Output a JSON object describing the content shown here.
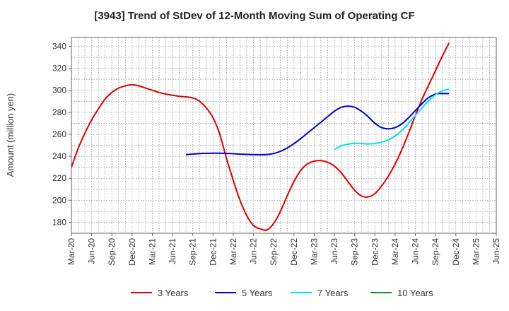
{
  "chart_data": {
    "type": "line",
    "title": "[3943]  Trend of StDev of 12-Month Moving Sum of Operating CF",
    "xlabel": "",
    "ylabel": "Amount (million yen)",
    "ylim": [
      170,
      348
    ],
    "yticks": [
      180,
      200,
      220,
      240,
      260,
      280,
      300,
      320,
      340
    ],
    "xticks": [
      "Mar-20",
      "Jun-20",
      "Sep-20",
      "Dec-20",
      "Mar-21",
      "Jun-21",
      "Sep-21",
      "Dec-21",
      "Mar-22",
      "Jun-22",
      "Sep-22",
      "Dec-22",
      "Mar-23",
      "Jun-23",
      "Sep-23",
      "Dec-23",
      "Mar-24",
      "Jun-24",
      "Sep-24",
      "Dec-24",
      "Mar-25",
      "Jun-25"
    ],
    "grid": true,
    "legend_position": "bottom",
    "series": [
      {
        "name": "3 Years",
        "color": "#dd0000",
        "points": [
          [
            "Mar-20",
            230
          ],
          [
            "Apr-20",
            247
          ],
          [
            "May-20",
            261
          ],
          [
            "Jun-20",
            273
          ],
          [
            "Jul-20",
            283
          ],
          [
            "Aug-20",
            292
          ],
          [
            "Sep-20",
            298
          ],
          [
            "Oct-20",
            302
          ],
          [
            "Nov-20",
            304
          ],
          [
            "Dec-20",
            305
          ],
          [
            "Jan-21",
            304
          ],
          [
            "Feb-21",
            302
          ],
          [
            "Mar-21",
            300
          ],
          [
            "Apr-21",
            298
          ],
          [
            "May-21",
            296.5
          ],
          [
            "Jun-21",
            295.5
          ],
          [
            "Jul-21",
            294.5
          ],
          [
            "Aug-21",
            294
          ],
          [
            "Sep-21",
            293
          ],
          [
            "Oct-21",
            290
          ],
          [
            "Nov-21",
            284
          ],
          [
            "Dec-21",
            275
          ],
          [
            "Jan-22",
            260
          ],
          [
            "Feb-22",
            238
          ],
          [
            "Mar-22",
            218
          ],
          [
            "Apr-22",
            200
          ],
          [
            "May-22",
            186
          ],
          [
            "Jun-22",
            177
          ],
          [
            "Jul-22",
            174
          ],
          [
            "Aug-22",
            173
          ],
          [
            "Sep-22",
            179
          ],
          [
            "Oct-22",
            190
          ],
          [
            "Nov-22",
            204
          ],
          [
            "Dec-22",
            217
          ],
          [
            "Jan-23",
            227
          ],
          [
            "Feb-23",
            233
          ],
          [
            "Mar-23",
            235.5
          ],
          [
            "Apr-23",
            236
          ],
          [
            "May-23",
            234.5
          ],
          [
            "Jun-23",
            231
          ],
          [
            "Jul-23",
            225
          ],
          [
            "Aug-23",
            217
          ],
          [
            "Sep-23",
            209
          ],
          [
            "Oct-23",
            204
          ],
          [
            "Nov-23",
            203
          ],
          [
            "Dec-23",
            206
          ],
          [
            "Jan-24",
            213
          ],
          [
            "Feb-24",
            222
          ],
          [
            "Mar-24",
            233
          ],
          [
            "Apr-24",
            246
          ],
          [
            "May-24",
            261
          ],
          [
            "Jun-24",
            277
          ],
          [
            "Jul-24",
            292
          ],
          [
            "Aug-24",
            305
          ],
          [
            "Sep-24",
            318
          ],
          [
            "Oct-24",
            331
          ],
          [
            "Nov-24",
            343
          ]
        ]
      },
      {
        "name": "5 Years",
        "color": "#0000cc",
        "points": [
          [
            "Aug-21",
            241.5
          ],
          [
            "Sep-21",
            242
          ],
          [
            "Oct-21",
            242.5
          ],
          [
            "Nov-21",
            242.7
          ],
          [
            "Dec-21",
            242.8
          ],
          [
            "Jan-22",
            242.8
          ],
          [
            "Feb-22",
            242.6
          ],
          [
            "Mar-22",
            242.3
          ],
          [
            "Apr-22",
            242
          ],
          [
            "May-22",
            241.7
          ],
          [
            "Jun-22",
            241.5
          ],
          [
            "Jul-22",
            241.4
          ],
          [
            "Aug-22",
            241.6
          ],
          [
            "Sep-22",
            242.5
          ],
          [
            "Oct-22",
            244.5
          ],
          [
            "Nov-22",
            247.5
          ],
          [
            "Dec-22",
            251.5
          ],
          [
            "Jan-23",
            256
          ],
          [
            "Feb-23",
            261
          ],
          [
            "Mar-23",
            266
          ],
          [
            "Apr-23",
            271
          ],
          [
            "May-23",
            276
          ],
          [
            "Jun-23",
            281
          ],
          [
            "Jul-23",
            284.5
          ],
          [
            "Aug-23",
            285.5
          ],
          [
            "Sep-23",
            284.5
          ],
          [
            "Oct-23",
            281
          ],
          [
            "Nov-23",
            276
          ],
          [
            "Dec-23",
            270
          ],
          [
            "Jan-24",
            266
          ],
          [
            "Feb-24",
            265
          ],
          [
            "Mar-24",
            266
          ],
          [
            "Apr-24",
            269.5
          ],
          [
            "May-24",
            275
          ],
          [
            "Jun-24",
            281.5
          ],
          [
            "Jul-24",
            288
          ],
          [
            "Aug-24",
            293.5
          ],
          [
            "Sep-24",
            296.5
          ],
          [
            "Oct-24",
            297
          ],
          [
            "Nov-24",
            297
          ]
        ]
      },
      {
        "name": "7 Years",
        "color": "#00e5ee",
        "points": [
          [
            "Jun-23",
            246
          ],
          [
            "Jul-23",
            249.5
          ],
          [
            "Aug-23",
            251
          ],
          [
            "Sep-23",
            251.8
          ],
          [
            "Oct-23",
            251.6
          ],
          [
            "Nov-23",
            251.2
          ],
          [
            "Dec-23",
            251.6
          ],
          [
            "Jan-24",
            252.8
          ],
          [
            "Feb-24",
            255
          ],
          [
            "Mar-24",
            258.5
          ],
          [
            "Apr-24",
            263.5
          ],
          [
            "May-24",
            270
          ],
          [
            "Jun-24",
            277
          ],
          [
            "Jul-24",
            284
          ],
          [
            "Aug-24",
            290.5
          ],
          [
            "Sep-24",
            296
          ],
          [
            "Oct-24",
            299.5
          ],
          [
            "Nov-24",
            301
          ]
        ]
      },
      {
        "name": "10 Years",
        "color": "#228b22",
        "points": []
      }
    ]
  }
}
